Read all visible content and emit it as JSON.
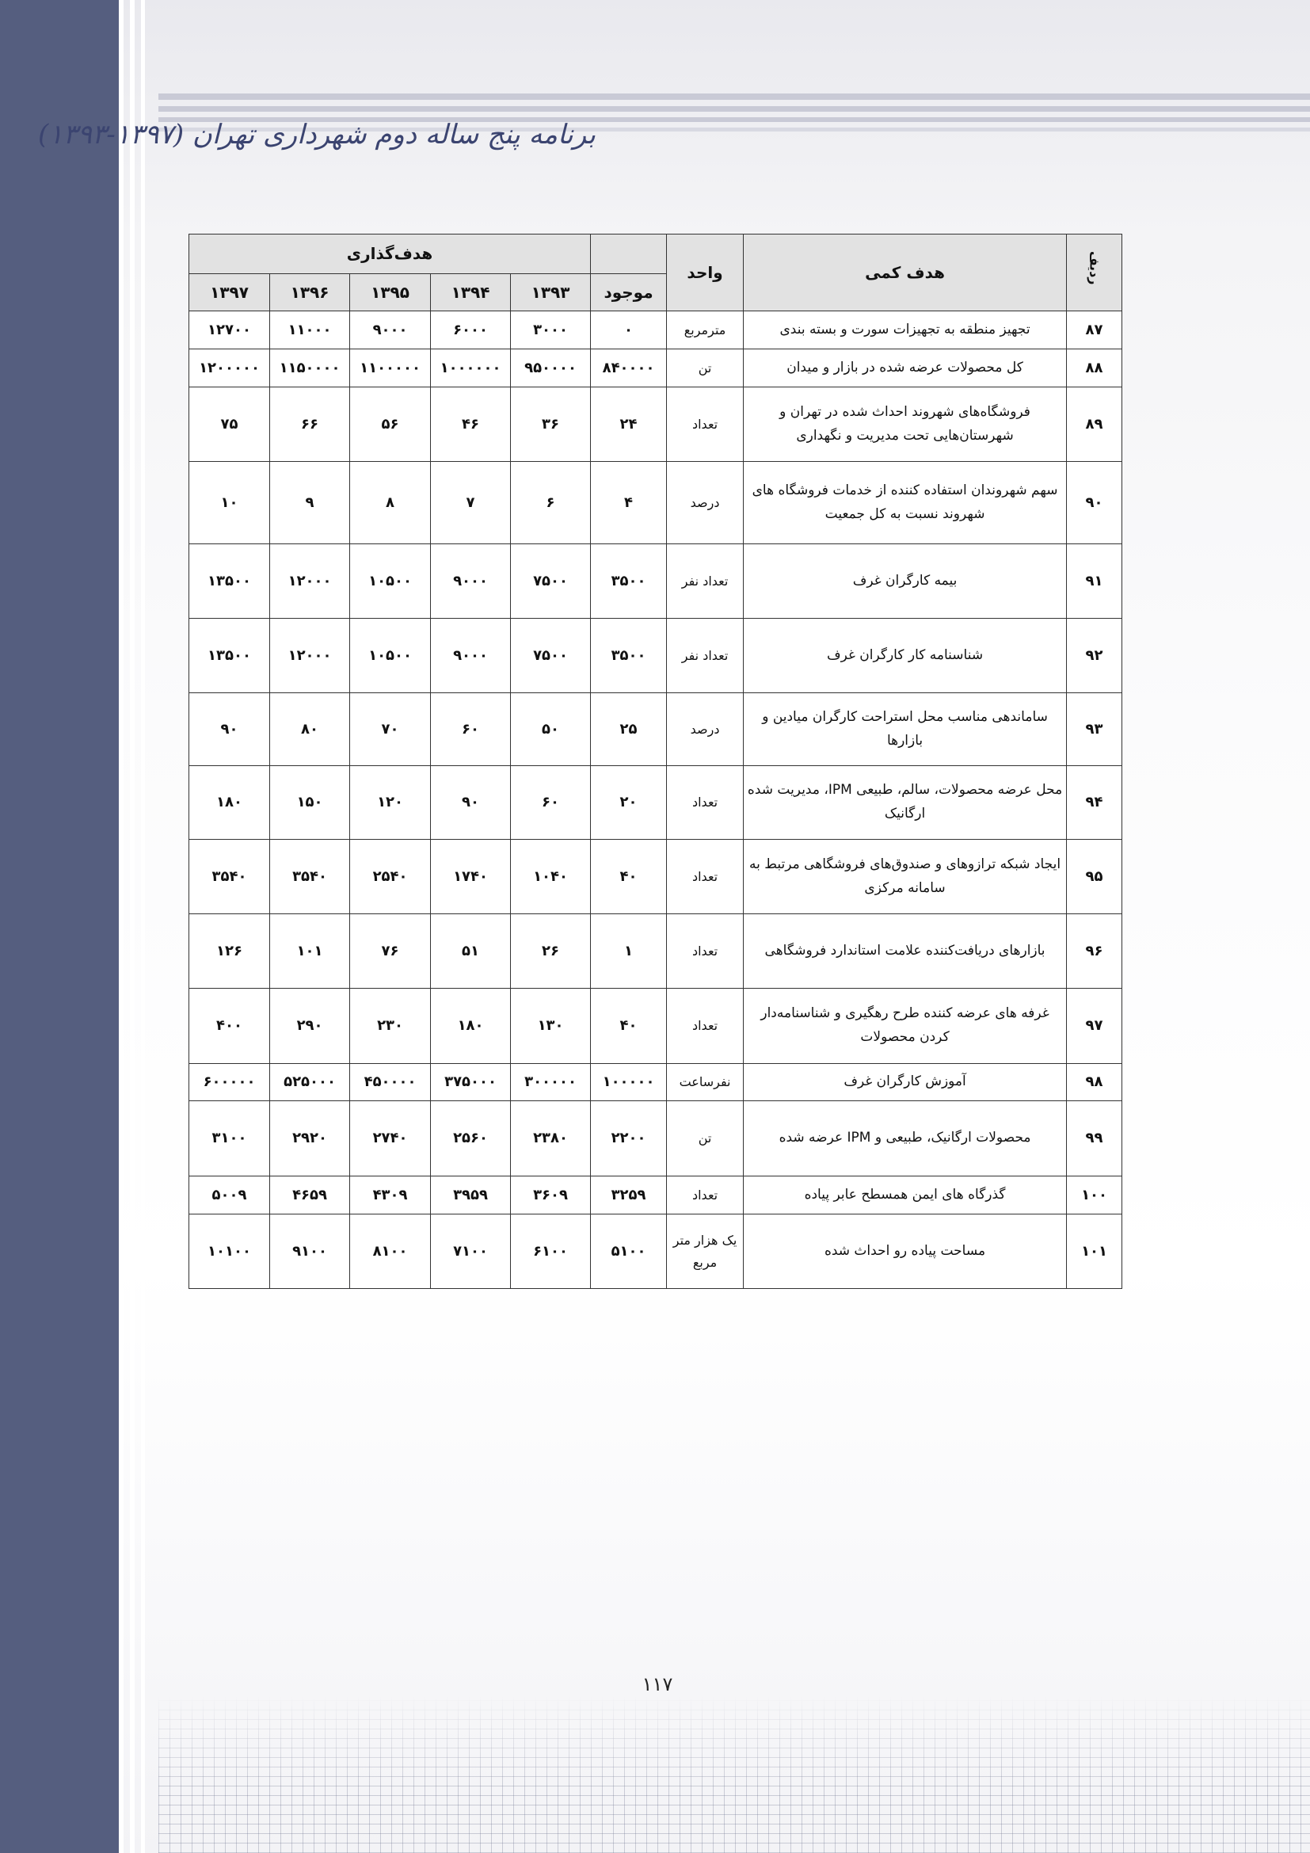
{
  "header": {
    "title": "برنامه پنج ساله دوم شهرداری تهران (۱۳۹۷-۱۳۹۳)"
  },
  "table": {
    "headers": {
      "row_no": "ردیف",
      "goal": "هدف کمی",
      "unit": "واحد",
      "current": "موجود",
      "target_group": "هدف‌گذاری",
      "years": [
        "۱۳۹۳",
        "۱۳۹۴",
        "۱۳۹۵",
        "۱۳۹۶",
        "۱۳۹۷"
      ]
    },
    "rows": [
      {
        "no": "۸۷",
        "goal": "تجهیز منطقه به تجهیزات سورت و بسته بندی",
        "unit": "مترمربع",
        "current": "۰",
        "values": [
          "۳۰۰۰",
          "۶۰۰۰",
          "۹۰۰۰",
          "۱۱۰۰۰",
          "۱۲۷۰۰"
        ]
      },
      {
        "no": "۸۸",
        "goal": "کل محصولات عرضه شده در بازار و میدان",
        "unit": "تن",
        "current": "۸۴۰۰۰۰",
        "values": [
          "۹۵۰۰۰۰",
          "۱۰۰۰۰۰۰",
          "۱۱۰۰۰۰۰",
          "۱۱۵۰۰۰۰",
          "۱۲۰۰۰۰۰"
        ]
      },
      {
        "no": "۸۹",
        "goal": "فروشگاه‌های شهروند احداث شده در تهران و شهرستان‌هایی تحت مدیریت و نگهداری",
        "unit": "تعداد",
        "current": "۲۴",
        "values": [
          "۳۶",
          "۴۶",
          "۵۶",
          "۶۶",
          "۷۵"
        ]
      },
      {
        "no": "۹۰",
        "goal": "سهم شهروندان استفاده کننده از خدمات فروشگاه های شهروند نسبت به کل جمعیت",
        "unit": "درصد",
        "current": "۴",
        "values": [
          "۶",
          "۷",
          "۸",
          "۹",
          "۱۰"
        ]
      },
      {
        "no": "۹۱",
        "goal": "بیمه کارگران غرف",
        "unit": "تعداد نفر",
        "current": "۳۵۰۰",
        "values": [
          "۷۵۰۰",
          "۹۰۰۰",
          "۱۰۵۰۰",
          "۱۲۰۰۰",
          "۱۳۵۰۰"
        ]
      },
      {
        "no": "۹۲",
        "goal": "شناسنامه کار کارگران غرف",
        "unit": "تعداد نفر",
        "current": "۳۵۰۰",
        "values": [
          "۷۵۰۰",
          "۹۰۰۰",
          "۱۰۵۰۰",
          "۱۲۰۰۰",
          "۱۳۵۰۰"
        ]
      },
      {
        "no": "۹۳",
        "goal": "ساماندهی مناسب محل استراحت کارگران میادین و بازارها",
        "unit": "درصد",
        "current": "۲۵",
        "values": [
          "۵۰",
          "۶۰",
          "۷۰",
          "۸۰",
          "۹۰"
        ]
      },
      {
        "no": "۹۴",
        "goal": "محل عرضه محصولات، سالم، طبیعی IPM، مدیریت شده ارگانیک",
        "unit": "تعداد",
        "current": "۲۰",
        "values": [
          "۶۰",
          "۹۰",
          "۱۲۰",
          "۱۵۰",
          "۱۸۰"
        ]
      },
      {
        "no": "۹۵",
        "goal": "ایجاد شبکه ترازوهای و صندوق‌های فروشگاهی مرتبط به سامانه مرکزی",
        "unit": "تعداد",
        "current": "۴۰",
        "values": [
          "۱۰۴۰",
          "۱۷۴۰",
          "۲۵۴۰",
          "۳۵۴۰",
          "۳۵۴۰"
        ]
      },
      {
        "no": "۹۶",
        "goal": "بازارهای دریافت‌کننده علامت استاندارد فروشگاهی",
        "unit": "تعداد",
        "current": "۱",
        "values": [
          "۲۶",
          "۵۱",
          "۷۶",
          "۱۰۱",
          "۱۲۶"
        ]
      },
      {
        "no": "۹۷",
        "goal": "غرفه های عرضه کننده طرح رهگیری و شناسنامه‌دار کردن محصولات",
        "unit": "تعداد",
        "current": "۴۰",
        "values": [
          "۱۳۰",
          "۱۸۰",
          "۲۳۰",
          "۲۹۰",
          "۴۰۰"
        ]
      },
      {
        "no": "۹۸",
        "goal": "آموزش کارگران غرف",
        "unit": "نفرساعت",
        "current": "۱۰۰۰۰۰",
        "values": [
          "۳۰۰۰۰۰",
          "۳۷۵۰۰۰",
          "۴۵۰۰۰۰",
          "۵۲۵۰۰۰",
          "۶۰۰۰۰۰"
        ]
      },
      {
        "no": "۹۹",
        "goal": "محصولات ارگانیک، طبیعی و IPM عرضه شده",
        "unit": "تن",
        "current": "۲۲۰۰",
        "values": [
          "۲۳۸۰",
          "۲۵۶۰",
          "۲۷۴۰",
          "۲۹۲۰",
          "۳۱۰۰"
        ]
      },
      {
        "no": "۱۰۰",
        "goal": "گذرگاه های ایمن همسطح عابر پیاده",
        "unit": "تعداد",
        "current": "۳۲۵۹",
        "values": [
          "۳۶۰۹",
          "۳۹۵۹",
          "۴۳۰۹",
          "۴۶۵۹",
          "۵۰۰۹"
        ]
      },
      {
        "no": "۱۰۱",
        "goal": "مساحت پیاده رو احداث شده",
        "unit": "یک هزار متر مربع",
        "current": "۵۱۰۰",
        "values": [
          "۶۱۰۰",
          "۷۱۰۰",
          "۸۱۰۰",
          "۹۱۰۰",
          "۱۰۱۰۰"
        ]
      }
    ]
  },
  "footer": {
    "page_number": "۱۱۷"
  }
}
